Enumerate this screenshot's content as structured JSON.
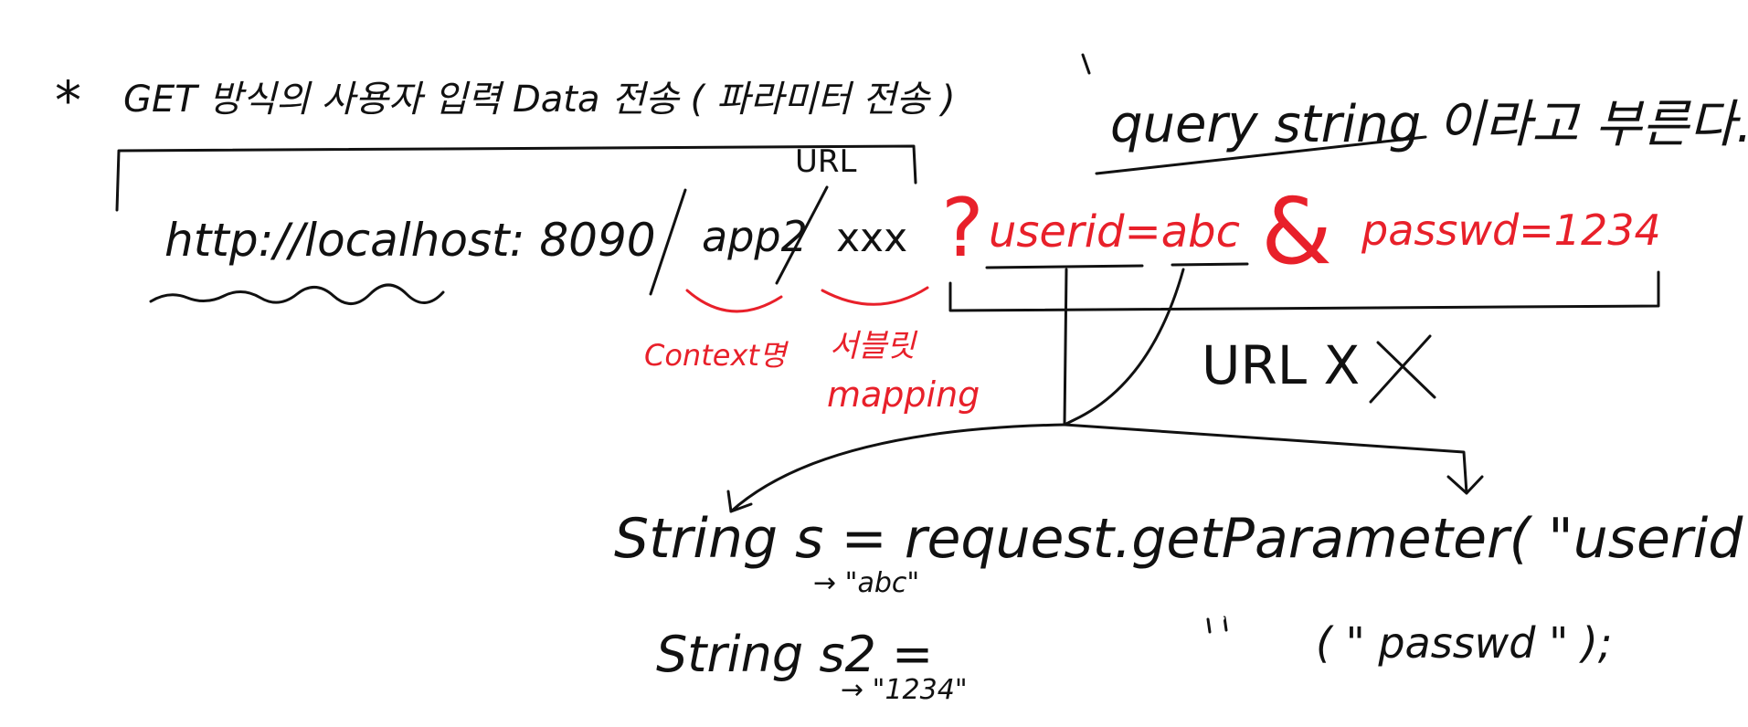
{
  "colors": {
    "ink": "#111111",
    "red": "#e8202a",
    "background": "#ffffff"
  },
  "header": {
    "star": "*",
    "title": "GET 방식의 사용자 입력 Data 전송 ( 파라미터 전송 )",
    "query_note": "query string 이라고 부른다."
  },
  "url_label": "URL",
  "url": {
    "base": "http://localhost: 8090",
    "context": "app2",
    "mapping": "xxx",
    "question": "?",
    "param1": "userid=abc",
    "amp": "&",
    "param2": "passwd=1234"
  },
  "annotations": {
    "context_note": "Context명",
    "mapping_note_1": "서블릿",
    "mapping_note_2": "mapping",
    "not_url": "URL X"
  },
  "code": {
    "line1": "String s = request.getParameter( \"userid\" )",
    "line1_result": "→ \"abc\"",
    "line2": "String s2 =",
    "line2_result": "→ \"1234\"",
    "line2_ditto": "〃",
    "line2_arg": "( \" passwd \" );"
  }
}
